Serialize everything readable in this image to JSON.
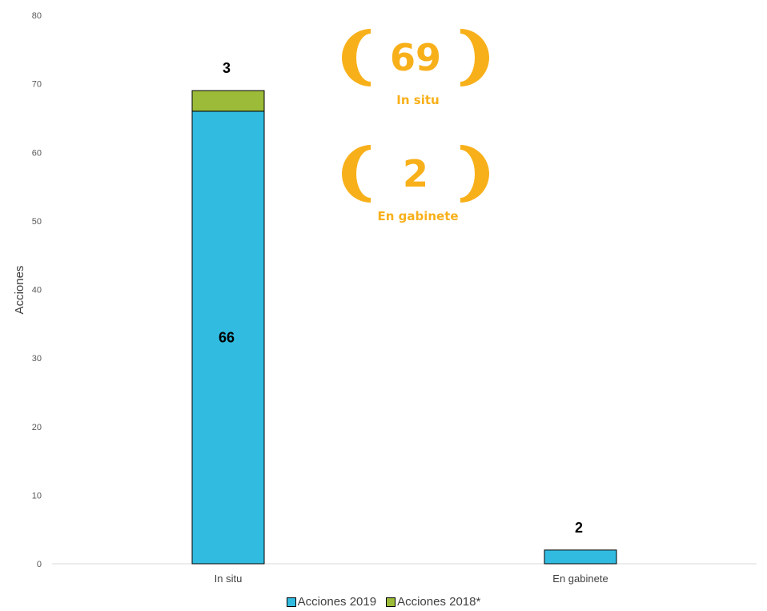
{
  "chart_data": {
    "type": "bar",
    "stacked": true,
    "categories": [
      "In situ",
      "En gabinete"
    ],
    "series": [
      {
        "name": "Acciones 2019",
        "values": [
          66,
          2
        ],
        "color": "#31BBE0"
      },
      {
        "name": "Acciones 2018*",
        "values": [
          3,
          0
        ],
        "color": "#9BBB39"
      }
    ],
    "data_labels": [
      {
        "category": "In situ",
        "series": "Acciones 2019",
        "text": "66"
      },
      {
        "category": "In situ",
        "series": "Acciones 2018*",
        "text": "3"
      },
      {
        "category": "En gabinete",
        "series": "Acciones 2019",
        "text": "2"
      }
    ],
    "ylabel": "Acciones",
    "xlabel": "",
    "ylim": [
      0,
      80
    ],
    "yticks": [
      0,
      10,
      20,
      30,
      40,
      50,
      60,
      70,
      80
    ],
    "grid": false,
    "legend_position": "bottom",
    "annotations": [
      {
        "value": "69",
        "label": "In situ",
        "color": "#F8B01A"
      },
      {
        "value": "2",
        "label": "En gabinete",
        "color": "#F8B01A"
      }
    ]
  }
}
